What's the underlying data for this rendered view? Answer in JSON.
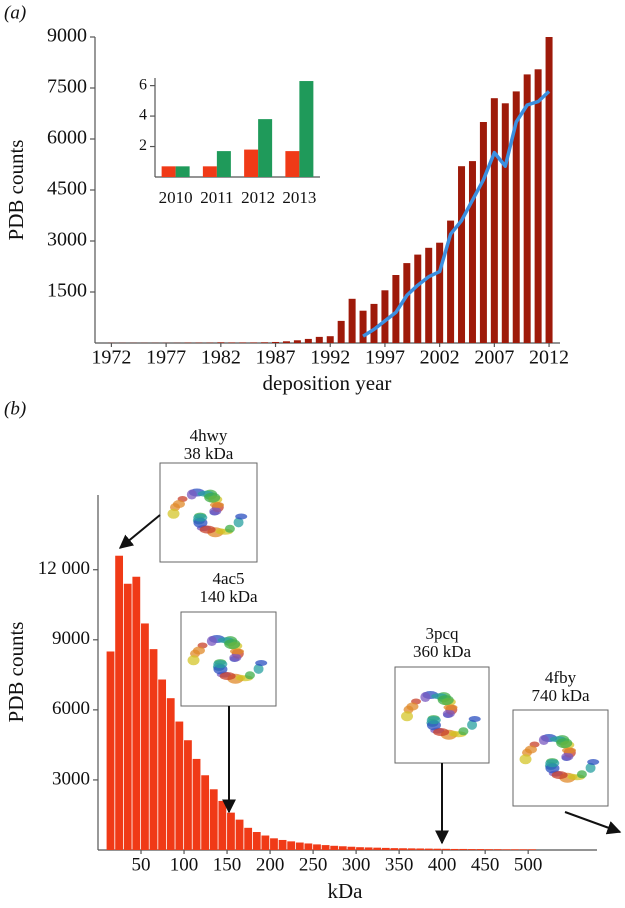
{
  "chart_data": [
    {
      "type": "bar",
      "label": "(a)",
      "ylabel": "PDB counts",
      "xlabel": "deposition year",
      "x": [
        1972,
        1973,
        1974,
        1975,
        1976,
        1977,
        1978,
        1979,
        1980,
        1981,
        1982,
        1983,
        1984,
        1985,
        1986,
        1987,
        1988,
        1989,
        1990,
        1991,
        1992,
        1993,
        1994,
        1995,
        1996,
        1997,
        1998,
        1999,
        2000,
        2001,
        2002,
        2003,
        2004,
        2005,
        2006,
        2007,
        2008,
        2009,
        2010,
        2011,
        2012
      ],
      "series": [
        {
          "type": "bar",
          "color": "#9e1a0a",
          "values": [
            5,
            5,
            5,
            5,
            5,
            5,
            5,
            10,
            10,
            10,
            20,
            15,
            15,
            15,
            20,
            30,
            50,
            80,
            120,
            180,
            200,
            650,
            1300,
            950,
            1150,
            1550,
            2000,
            2350,
            2600,
            2800,
            2950,
            3600,
            5200,
            5350,
            6500,
            7200,
            7050,
            7400,
            7900,
            8050,
            9000
          ]
        },
        {
          "type": "line",
          "color": "#3b8fe0",
          "values": [
            null,
            null,
            null,
            null,
            null,
            null,
            null,
            null,
            null,
            null,
            null,
            null,
            null,
            null,
            null,
            null,
            null,
            null,
            null,
            null,
            null,
            null,
            null,
            200,
            400,
            650,
            900,
            1400,
            1700,
            1950,
            2100,
            3200,
            3600,
            4200,
            4800,
            5600,
            5200,
            6500,
            7000,
            7100,
            7400
          ]
        }
      ],
      "xlim": [
        1970.5,
        2013
      ],
      "xticks": [
        1972,
        1977,
        1982,
        1987,
        1992,
        1997,
        2002,
        2007,
        2012
      ],
      "ylim": [
        0,
        9000
      ],
      "yticks": [
        1500,
        3000,
        4500,
        6000,
        7500,
        9000
      ]
    },
    {
      "type": "grouped-bar",
      "categories": [
        "2010",
        "2011",
        "2012",
        "2013"
      ],
      "series": [
        {
          "color": "#f03a17",
          "values": [
            0.7,
            0.7,
            1.8,
            1.7
          ]
        },
        {
          "color": "#1f9a5a",
          "values": [
            0.7,
            1.7,
            3.8,
            6.3
          ]
        }
      ],
      "ylim": [
        0,
        6.5
      ],
      "yticks": [
        2,
        4,
        6
      ]
    },
    {
      "type": "histogram",
      "label": "(b)",
      "ylabel": "PDB counts",
      "xlabel": "kDa",
      "color": "#f03a17",
      "bins": [
        10,
        20,
        30,
        40,
        50,
        60,
        70,
        80,
        90,
        100,
        110,
        120,
        130,
        140,
        150,
        160,
        170,
        180,
        190,
        200,
        210,
        220,
        230,
        240,
        250,
        260,
        270,
        280,
        290,
        300,
        310,
        320,
        330,
        340,
        350,
        360,
        370,
        380,
        390,
        400,
        410,
        420,
        430,
        440,
        450,
        460,
        470,
        480,
        490,
        500,
        510
      ],
      "values": [
        8500,
        12600,
        11400,
        11700,
        9700,
        8600,
        7300,
        6500,
        5500,
        4700,
        3900,
        3200,
        2600,
        2100,
        1600,
        1300,
        950,
        770,
        620,
        500,
        430,
        370,
        320,
        280,
        240,
        210,
        180,
        160,
        140,
        120,
        110,
        100,
        90,
        80,
        75,
        70,
        65,
        60,
        55,
        50,
        45,
        45,
        40,
        40,
        35,
        35,
        30,
        30,
        30,
        30
      ],
      "xlim": [
        0,
        580
      ],
      "xticks": [
        50,
        100,
        150,
        200,
        250,
        300,
        350,
        400,
        450,
        500
      ],
      "ylim": [
        0,
        15200
      ],
      "yticks": [
        3000,
        6000,
        9000,
        {
          "value": 12000,
          "label": "12 000"
        }
      ],
      "annotations": [
        {
          "name": "4hwy",
          "mass": "38 kDa"
        },
        {
          "name": "4ac5",
          "mass": "140 kDa"
        },
        {
          "name": "3pcq",
          "mass": "360 kDa"
        },
        {
          "name": "4fby",
          "mass": "740 kDa"
        }
      ]
    }
  ]
}
